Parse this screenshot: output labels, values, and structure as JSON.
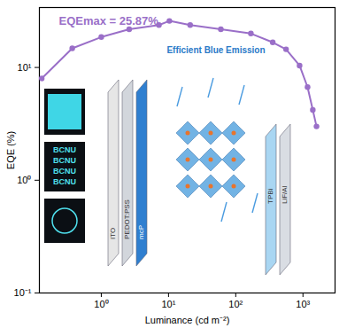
{
  "chart_data": {
    "type": "line",
    "x_label": "Luminance (cd m⁻²)",
    "y_label": "EQE (%)",
    "log": true,
    "grid": false,
    "marker": "circle",
    "line_style": "solid",
    "color": "#9a6fc8",
    "x": [
      0.13,
      0.37,
      1.0,
      2.6,
      7.2,
      10.3,
      21,
      60,
      168,
      355,
      560,
      890,
      1170,
      1400,
      1590
    ],
    "values": [
      8.0,
      14.8,
      18.6,
      21.8,
      23.8,
      25.87,
      23.8,
      21.8,
      20.0,
      16.7,
      14.5,
      10.4,
      6.7,
      4.2,
      3.0
    ],
    "xlim": [
      0.12,
      3000
    ],
    "ylim": [
      0.1,
      34
    ],
    "xticks": [
      {
        "value": 1,
        "label": "10⁰"
      },
      {
        "value": 10,
        "label": "10¹"
      },
      {
        "value": 100,
        "label": "10²"
      },
      {
        "value": 1000,
        "label": "10³"
      }
    ],
    "yticks": [
      {
        "value": 0.1,
        "label": "10⁻¹"
      },
      {
        "value": 1,
        "label": "10⁰"
      },
      {
        "value": 10,
        "label": "10¹"
      }
    ],
    "annotations": [
      "EQEmax = 25.87%"
    ],
    "inset": {
      "layers_left": [
        "ITO",
        "PEDOT:PSS",
        "mcP"
      ],
      "layers_right": [
        "TPBi",
        "LiF/Al"
      ],
      "emission_label": "Efficient Blue Emission",
      "photo_text": [
        "BCNU",
        "BCNU",
        "BCNU",
        "BCNU"
      ]
    }
  }
}
